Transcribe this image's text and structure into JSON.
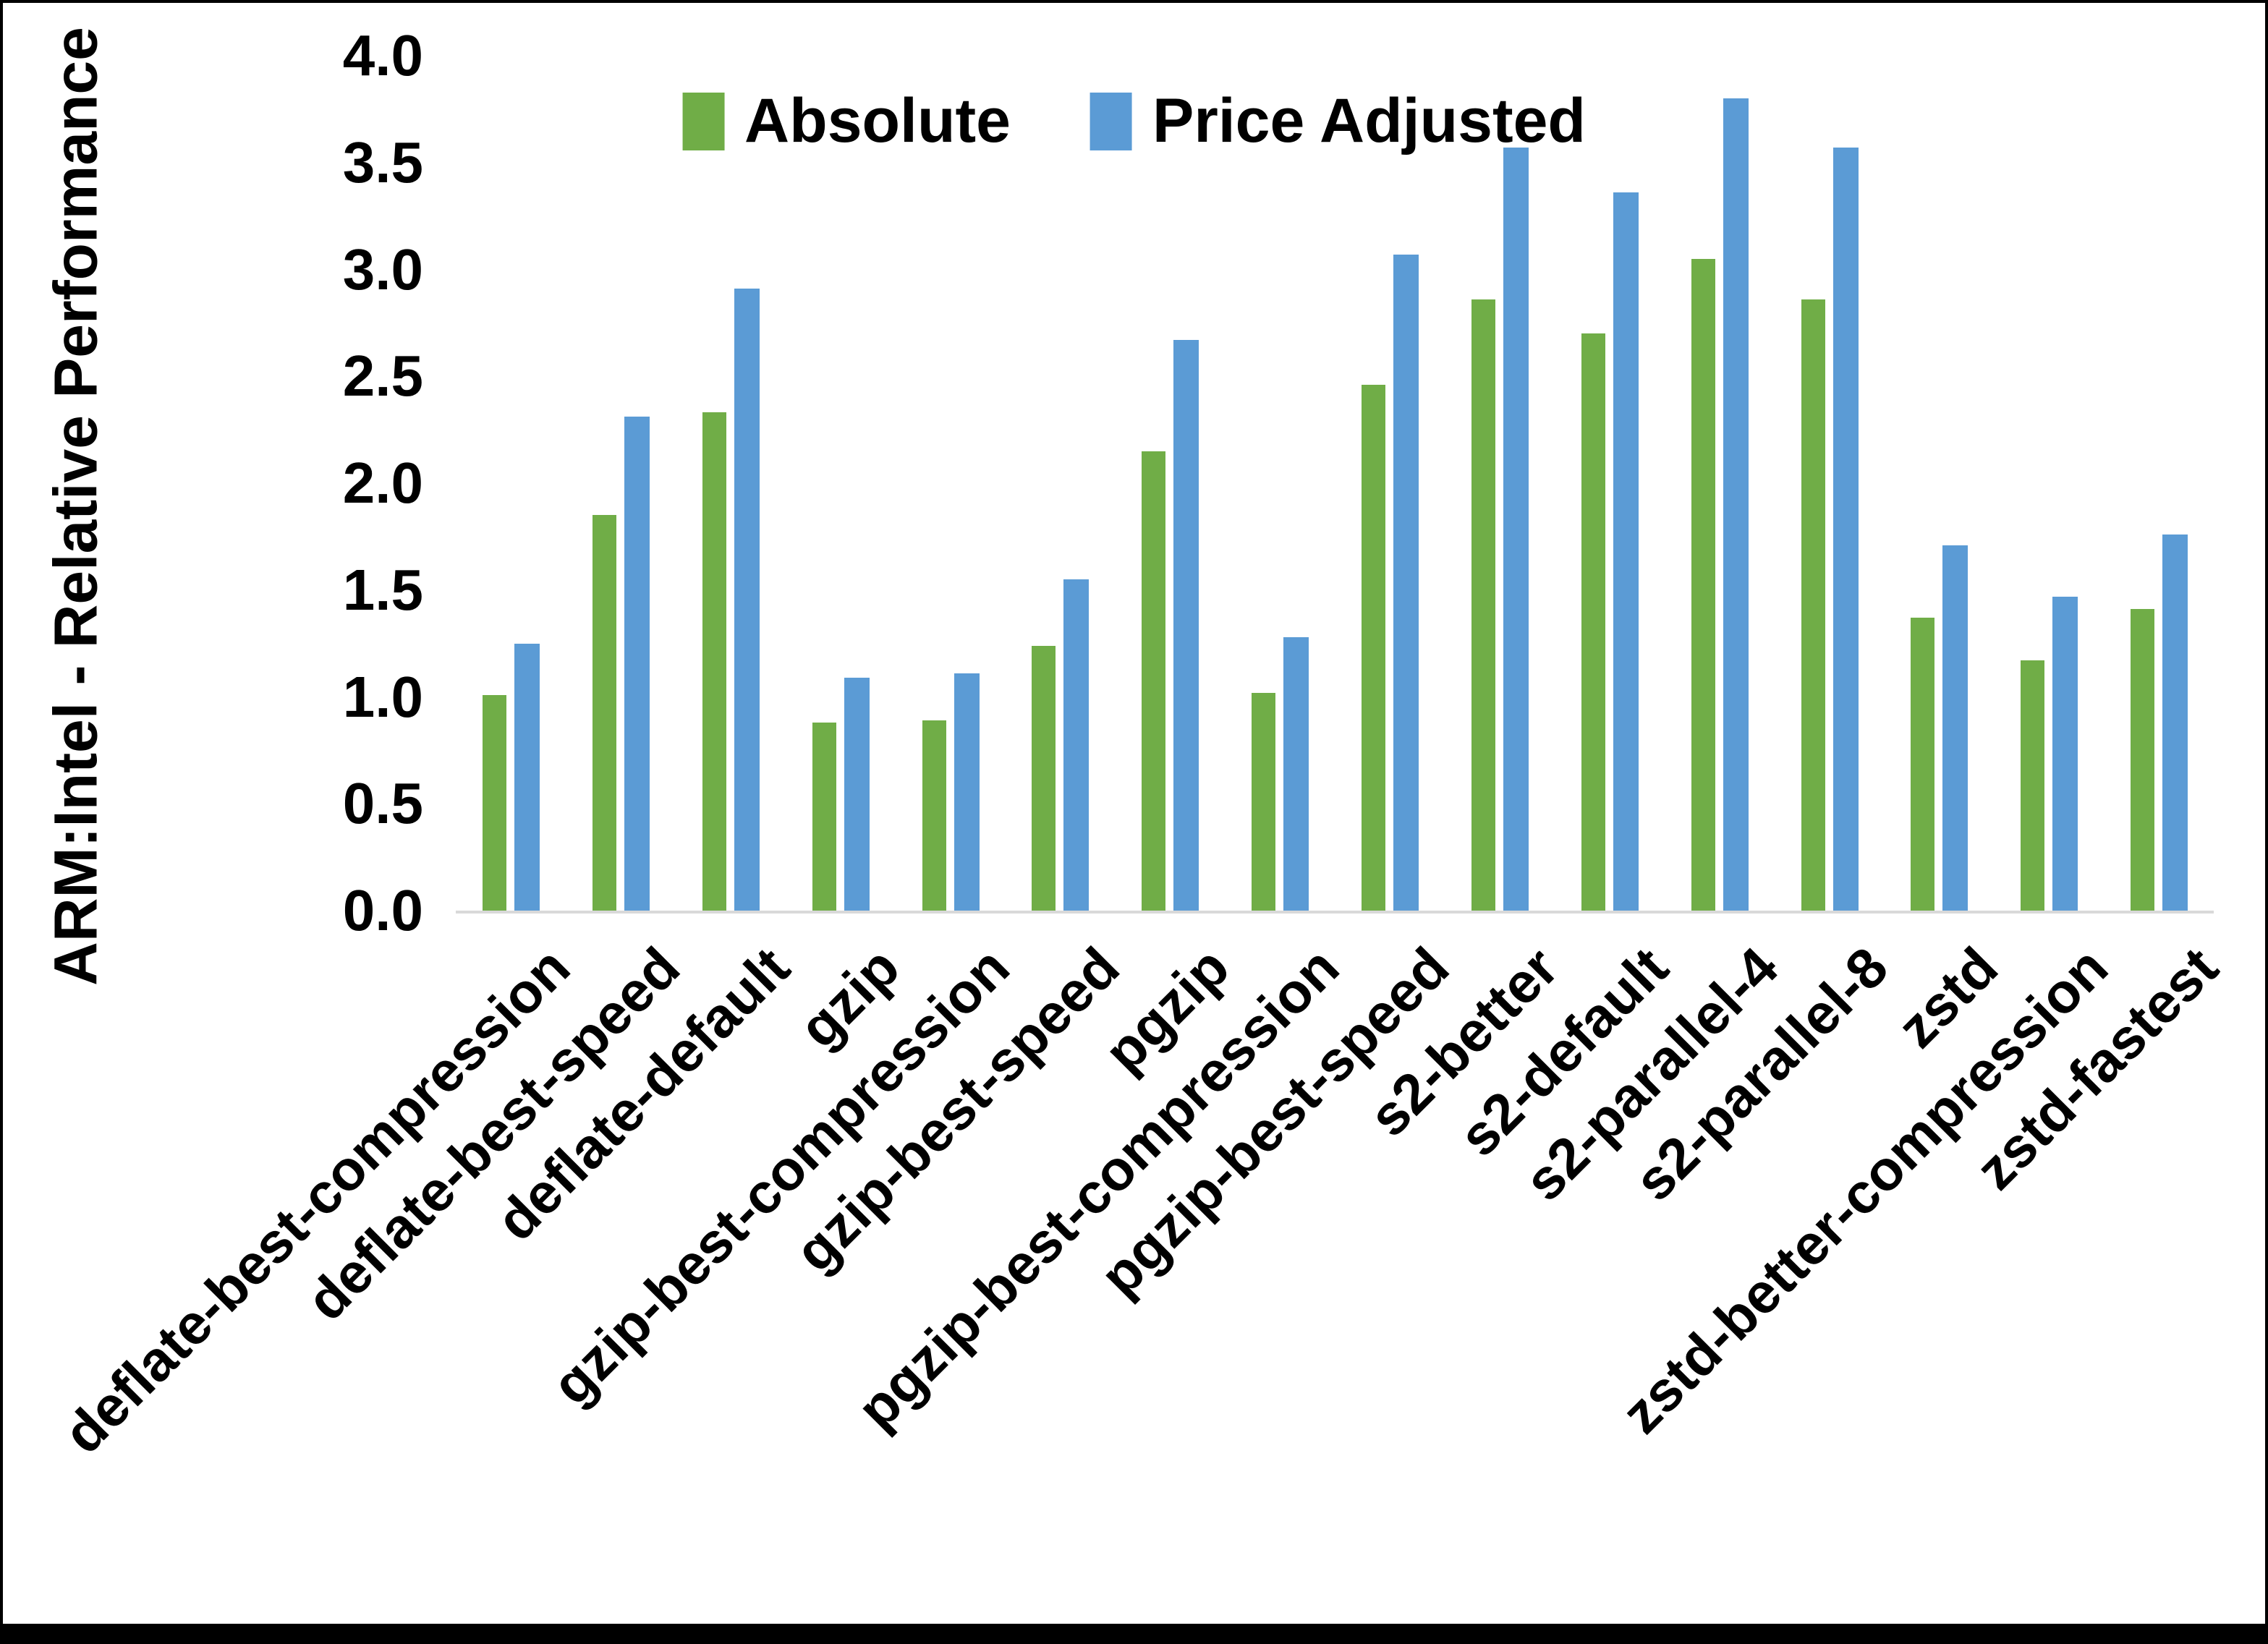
{
  "chart_data": {
    "type": "bar",
    "title": "",
    "ylabel": "ARM:Intel - Relative Performance",
    "xlabel": "",
    "ylim": [
      0,
      4.0
    ],
    "ytick_step": 0.5,
    "yticks": [
      "4.0",
      "3.5",
      "3.0",
      "2.5",
      "2.0",
      "1.5",
      "1.0",
      "0.5",
      "0.0"
    ],
    "grid": false,
    "legend_position": "top-center",
    "categories": [
      "deflate-best-compression",
      "deflate-best-speed",
      "deflate-default",
      "gzip",
      "gzip-best-compression",
      "gzip-best-speed",
      "pgzip",
      "pgzip-best-compression",
      "pgzip-best-speed",
      "s2-better",
      "s2-default",
      "s2-parallel-4",
      "s2-parallel-8",
      "zstd",
      "zstd-better-compression",
      "zstd-fastest"
    ],
    "series": [
      {
        "name": "Absolute",
        "color": "#70AD47",
        "values": [
          1.01,
          1.85,
          2.33,
          0.88,
          0.89,
          1.24,
          2.15,
          1.02,
          2.46,
          2.86,
          2.7,
          3.05,
          2.86,
          1.37,
          1.17,
          1.41
        ]
      },
      {
        "name": "Price Adjusted",
        "color": "#5B9BD5",
        "values": [
          1.25,
          2.31,
          2.91,
          1.09,
          1.11,
          1.55,
          2.67,
          1.28,
          3.07,
          3.57,
          3.36,
          3.8,
          3.57,
          1.71,
          1.47,
          1.76
        ]
      }
    ],
    "axis_line_color": "#D9D9D9",
    "text_color": "#000000",
    "background_color": "#FFFFFF"
  }
}
